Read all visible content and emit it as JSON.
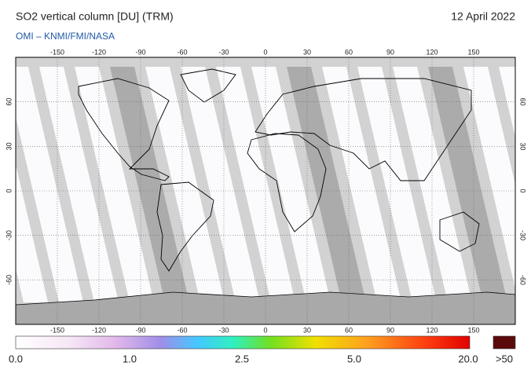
{
  "header": {
    "title": "SO2 vertical column [DU] (TRM)",
    "subtitle": "OMI  –  KNMI/FMI/NASA",
    "date": "12 April 2022"
  },
  "map": {
    "lon_ticks": [
      -150,
      -120,
      -90,
      -60,
      -30,
      0,
      30,
      60,
      90,
      120,
      150
    ],
    "lat_ticks": [
      60,
      30,
      0,
      -30,
      -60
    ],
    "lon_range": [
      -180,
      180
    ],
    "lat_range": [
      -90,
      90
    ]
  },
  "colorbar": {
    "labels": [
      "0.0",
      "1.0",
      "2.5",
      "5.0",
      "20.0"
    ],
    "overflow_label": ">50"
  }
}
